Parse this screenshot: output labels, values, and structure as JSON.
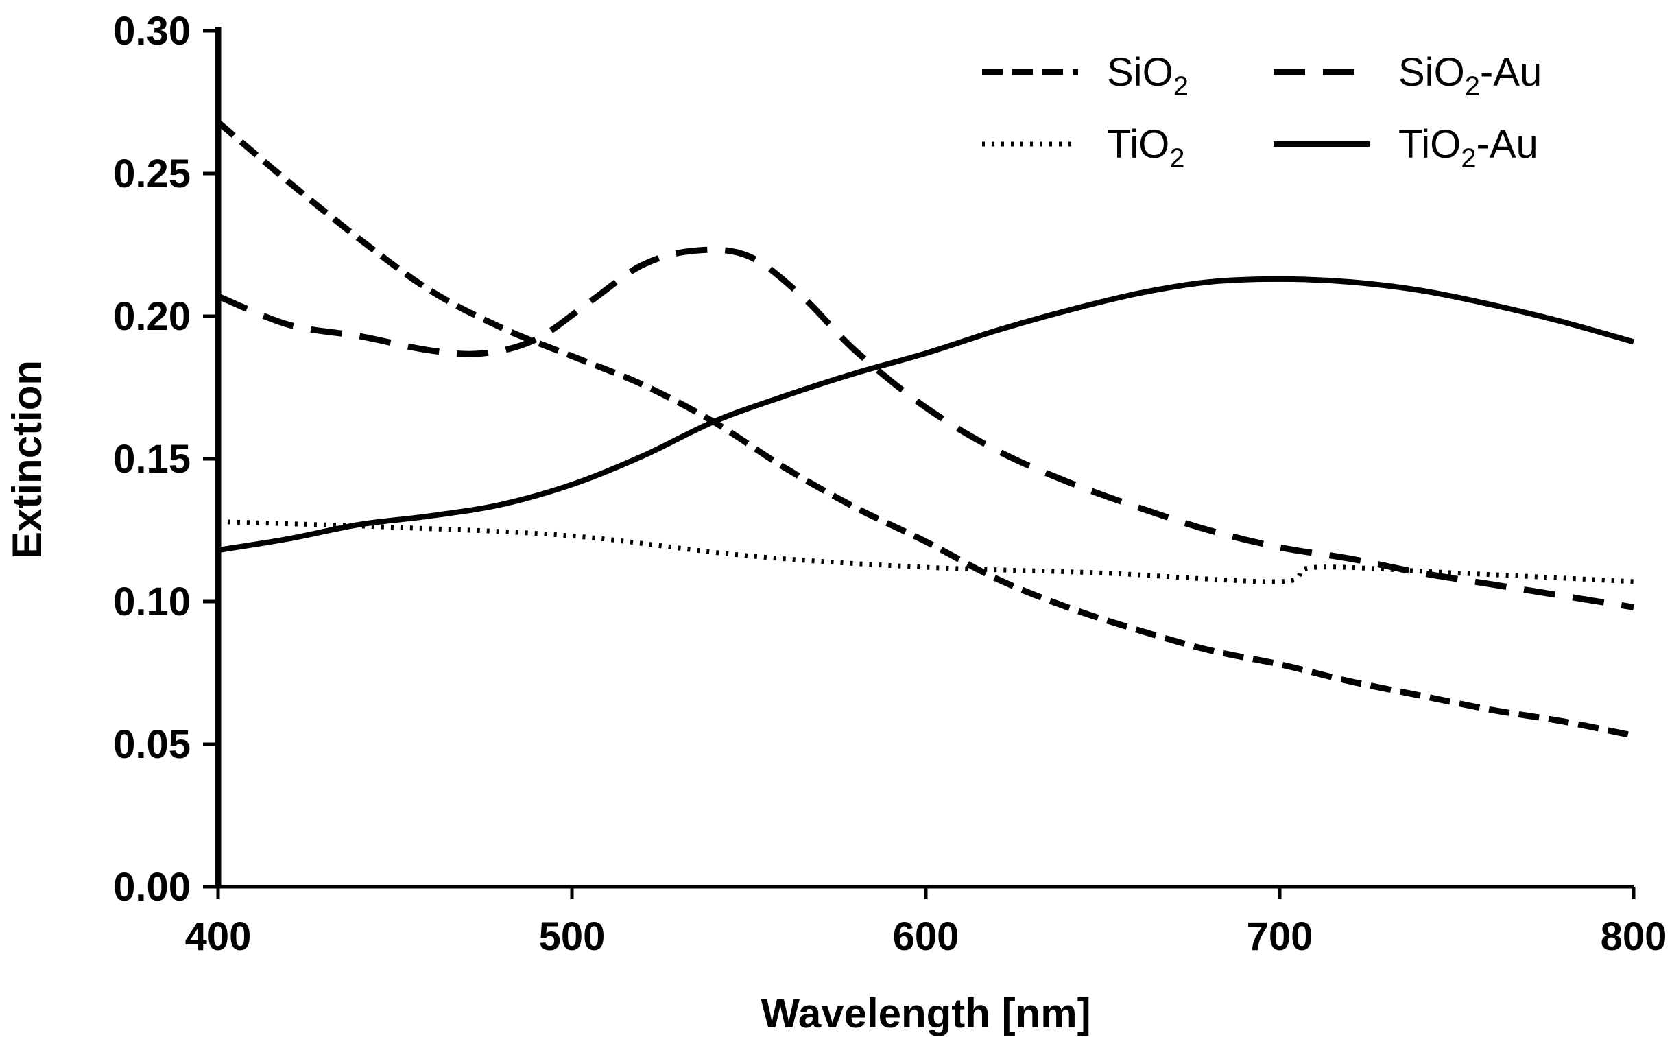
{
  "chart_data": {
    "type": "line",
    "title": "",
    "xlabel": "Wavelength [nm]",
    "ylabel": "Extinction",
    "xlim": [
      400,
      800
    ],
    "ylim": [
      0.0,
      0.3
    ],
    "xticks": [
      400,
      500,
      600,
      700,
      800
    ],
    "xtick_labels": [
      "400",
      "500",
      "600",
      "700",
      "800"
    ],
    "yticks": [
      0.0,
      0.05,
      0.1,
      0.15,
      0.2,
      0.25,
      0.3
    ],
    "ytick_labels": [
      "0.00",
      "0.05",
      "0.10",
      "0.15",
      "0.20",
      "0.25",
      "0.30"
    ],
    "grid": false,
    "legend_position": "top-right",
    "series": [
      {
        "name": "SiO2",
        "legend_main": "SiO",
        "legend_sub": "2",
        "legend_suffix": "",
        "style": "short-dash",
        "x": [
          400,
          420,
          440,
          460,
          480,
          500,
          520,
          540,
          560,
          580,
          600,
          620,
          640,
          660,
          680,
          700,
          720,
          740,
          760,
          780,
          800
        ],
        "y": [
          0.268,
          0.247,
          0.227,
          0.209,
          0.196,
          0.186,
          0.176,
          0.163,
          0.147,
          0.133,
          0.121,
          0.108,
          0.098,
          0.09,
          0.083,
          0.078,
          0.072,
          0.067,
          0.062,
          0.058,
          0.053
        ]
      },
      {
        "name": "SiO2-Au",
        "legend_main": "SiO",
        "legend_sub": "2",
        "legend_suffix": "-Au",
        "style": "long-dash",
        "x": [
          400,
          420,
          440,
          460,
          475,
          490,
          505,
          520,
          535,
          550,
          565,
          580,
          600,
          620,
          640,
          660,
          680,
          700,
          720,
          740,
          760,
          780,
          800
        ],
        "y": [
          0.207,
          0.197,
          0.193,
          0.188,
          0.187,
          0.192,
          0.205,
          0.218,
          0.223,
          0.221,
          0.207,
          0.188,
          0.168,
          0.153,
          0.142,
          0.133,
          0.125,
          0.119,
          0.115,
          0.11,
          0.106,
          0.102,
          0.098
        ]
      },
      {
        "name": "TiO2",
        "legend_main": "TiO",
        "legend_sub": "2",
        "legend_suffix": "",
        "style": "dotted",
        "x": [
          400,
          450,
          500,
          550,
          600,
          650,
          700,
          710,
          750,
          800
        ],
        "y": [
          0.128,
          0.126,
          0.123,
          0.116,
          0.112,
          0.11,
          0.107,
          0.112,
          0.11,
          0.107
        ]
      },
      {
        "name": "TiO2-Au",
        "legend_main": "TiO",
        "legend_sub": "2",
        "legend_suffix": "-Au",
        "style": "solid",
        "x": [
          400,
          420,
          440,
          460,
          480,
          500,
          520,
          540,
          560,
          580,
          600,
          620,
          640,
          660,
          680,
          700,
          720,
          740,
          760,
          780,
          800
        ],
        "y": [
          0.118,
          0.122,
          0.127,
          0.13,
          0.134,
          0.141,
          0.151,
          0.163,
          0.172,
          0.18,
          0.187,
          0.195,
          0.202,
          0.208,
          0.212,
          0.213,
          0.212,
          0.209,
          0.204,
          0.198,
          0.191
        ]
      }
    ]
  }
}
